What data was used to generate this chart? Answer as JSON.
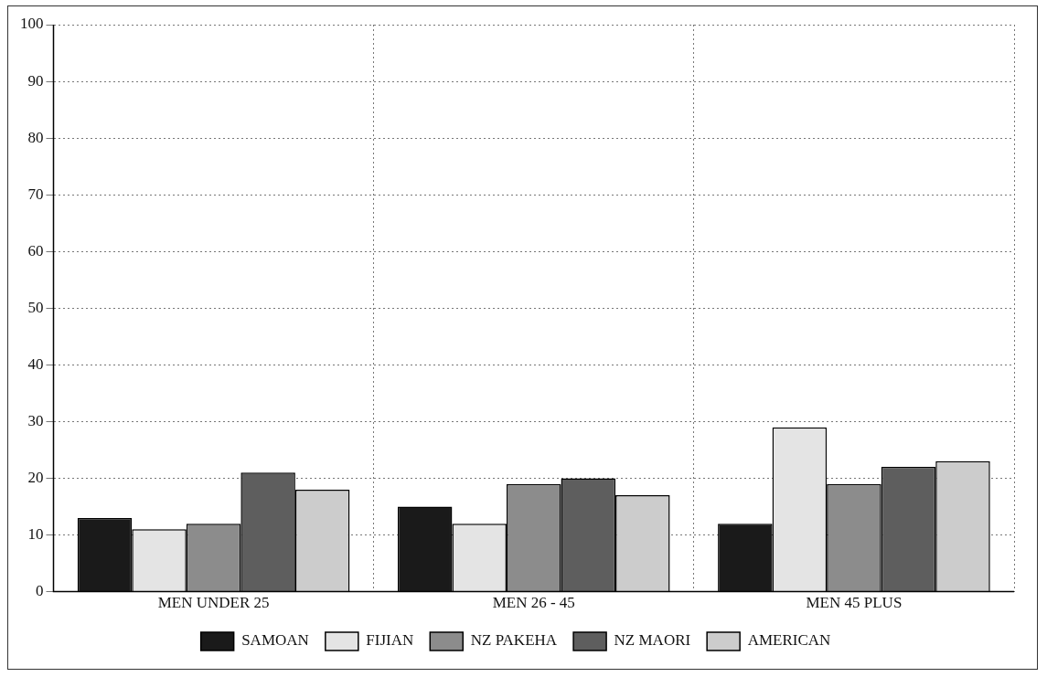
{
  "chart_data": {
    "type": "bar",
    "categories": [
      "MEN UNDER 25",
      "MEN 26 - 45",
      "MEN 45 PLUS"
    ],
    "series": [
      {
        "name": "SAMOAN",
        "color": "#1a1a1a",
        "values": [
          13,
          15,
          12
        ]
      },
      {
        "name": "FIJIAN",
        "color": "#e4e4e4",
        "values": [
          11,
          12,
          29
        ]
      },
      {
        "name": "NZ PAKEHA",
        "color": "#8c8c8c",
        "values": [
          12,
          19,
          19
        ]
      },
      {
        "name": "NZ MAORI",
        "color": "#5e5e5e",
        "values": [
          21,
          20,
          22
        ]
      },
      {
        "name": "AMERICAN",
        "color": "#cccccc",
        "values": [
          18,
          17,
          23
        ]
      }
    ],
    "ylim": [
      0,
      100
    ],
    "yticks": [
      0,
      10,
      20,
      30,
      40,
      50,
      60,
      70,
      80,
      90,
      100
    ],
    "grid": true,
    "legend": "bottom"
  }
}
